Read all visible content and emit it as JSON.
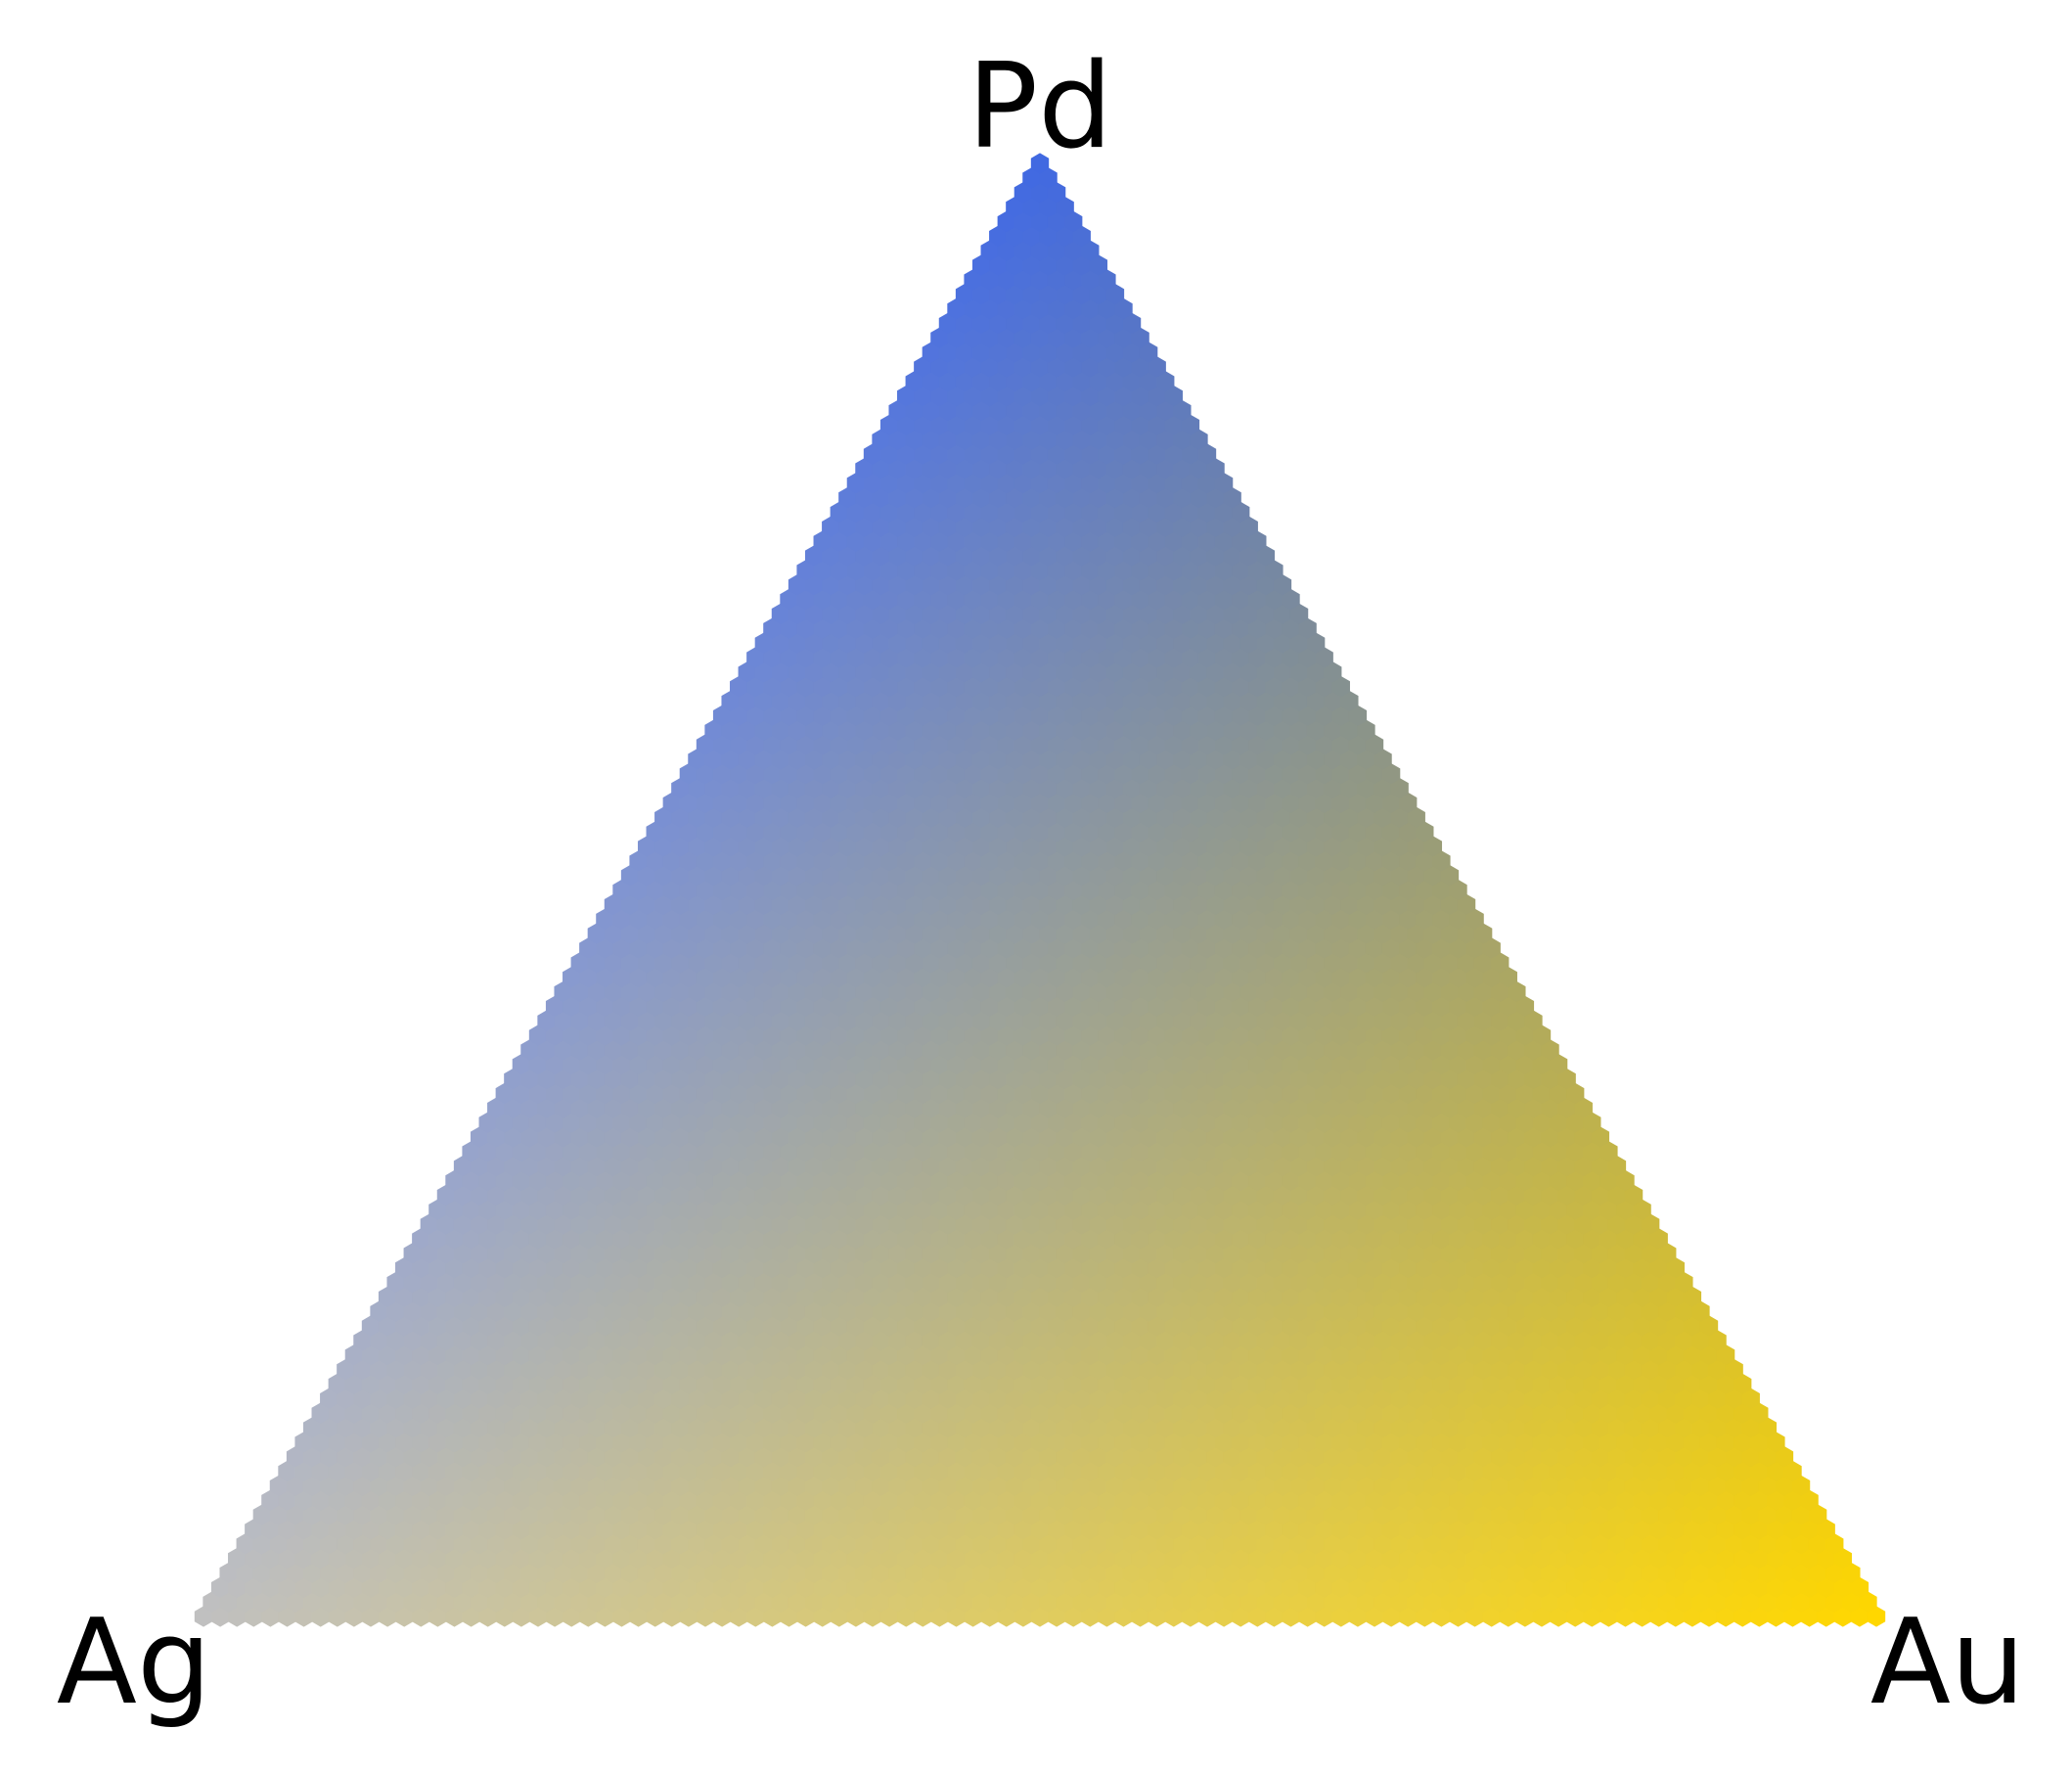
{
  "chart_data": {
    "type": "heatmap",
    "subtype": "ternary",
    "components": [
      "Pd",
      "Ag",
      "Au"
    ],
    "vertex_colors": {
      "Pd": "#4169e1",
      "Ag": "#c0c0c0",
      "Au": "#ffd700"
    },
    "grid_resolution": 100,
    "background": "#ffffff",
    "axes": "none",
    "legend": "none"
  }
}
